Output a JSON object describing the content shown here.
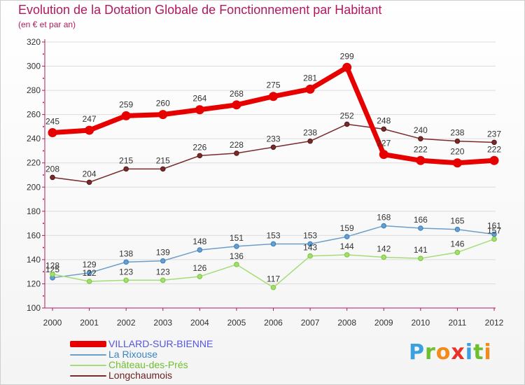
{
  "header": {
    "title": "Evolution de la Dotation Globale de Fonctionnement par Habitant",
    "subtitle": "(en € et par an)"
  },
  "logo": {
    "letters": [
      "P",
      "r",
      "o",
      "x",
      "i",
      "t",
      "i"
    ],
    "colors": [
      "#3aa0e0",
      "#6dbf2e",
      "#f28a1c",
      "#e8322a",
      "#3aa0e0",
      "#6dbf2e",
      "#f28a1c"
    ]
  },
  "colors": {
    "title": "#b0185f",
    "axis": "#b0185f",
    "grid": "#dcdcdc",
    "value_label": "#333333"
  },
  "chart_data": {
    "type": "line",
    "x": [
      "2000",
      "2001",
      "2002",
      "2003",
      "2004",
      "2005",
      "2006",
      "2007",
      "2008",
      "2009",
      "2010",
      "2011",
      "2012"
    ],
    "ylim": [
      100,
      320
    ],
    "yticks": [
      "100",
      "120",
      "140",
      "160",
      "180",
      "200",
      "220",
      "240",
      "260",
      "280",
      "300",
      "320"
    ],
    "grid": "horizontal",
    "legend_position": "bottom-left",
    "series": [
      {
        "name": "VILLARD-SUR-BIENNE",
        "values": [
          245,
          247,
          259,
          260,
          264,
          268,
          275,
          281,
          299,
          227,
          222,
          220,
          222
        ],
        "color": "#e60000",
        "label_color": "#5555dd",
        "emphasis": true
      },
      {
        "name": "La Rixouse",
        "values": [
          125,
          129,
          138,
          139,
          148,
          151,
          153,
          153,
          159,
          168,
          166,
          165,
          161
        ],
        "color": "#6d9ec9",
        "marker": "#3a84c4",
        "label_color": "#3a84c4"
      },
      {
        "name": "Château-des-Prés",
        "values": [
          128,
          122,
          123,
          123,
          126,
          136,
          117,
          143,
          144,
          142,
          141,
          146,
          157
        ],
        "color": "#a6dc78",
        "marker": "#7ccc3a",
        "label_color": "#6fbf2e"
      },
      {
        "name": "Longchaumois",
        "values": [
          208,
          204,
          215,
          215,
          226,
          228,
          233,
          238,
          252,
          248,
          240,
          238,
          237
        ],
        "color": "#7a2a2a",
        "marker": "#5a1a1a",
        "label_color": "#6b1f1f"
      }
    ]
  }
}
